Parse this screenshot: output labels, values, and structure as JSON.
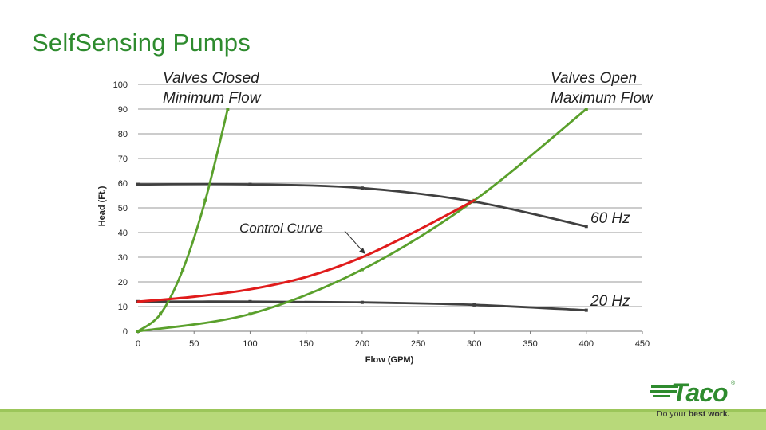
{
  "slide": {
    "title": "SelfSensing Pumps"
  },
  "annotations": {
    "valves_closed_line1": "Valves Closed",
    "valves_closed_line2": "Minimum Flow",
    "valves_open_line1": "Valves Open",
    "valves_open_line2": "Maximum Flow",
    "control_curve": "Control Curve",
    "hz60": "60 Hz",
    "hz20": "20 Hz"
  },
  "logo": {
    "word": "Taco",
    "registered": "®",
    "tagline_plain": "Do your ",
    "tagline_bold": "best work."
  },
  "colors": {
    "title": "#2e8b2e",
    "system_curve": "#5aa02c",
    "pump_curve": "#404040",
    "control_curve": "#e01b1b",
    "band": "#b8d97a"
  },
  "chart_data": {
    "type": "line",
    "xlabel": "Flow (GPM)",
    "ylabel": "Head (Ft.)",
    "xlim": [
      0,
      450
    ],
    "ylim": [
      0,
      100
    ],
    "xticks": [
      0,
      50,
      100,
      150,
      200,
      250,
      300,
      350,
      400,
      450
    ],
    "yticks": [
      0,
      10,
      20,
      30,
      40,
      50,
      60,
      70,
      80,
      90,
      100
    ],
    "grid": "horizontal",
    "series": [
      {
        "key": "min_flow",
        "color": "#5aa02c",
        "x": [
          0,
          20,
          40,
          60,
          80
        ],
        "y": [
          0,
          7,
          25,
          53,
          90
        ]
      },
      {
        "key": "max_flow",
        "color": "#5aa02c",
        "x": [
          0,
          100,
          200,
          300,
          400
        ],
        "y": [
          0,
          7,
          25,
          53,
          90
        ]
      },
      {
        "key": "pump_60hz",
        "color": "#404040",
        "x": [
          0,
          100,
          200,
          300,
          400
        ],
        "y": [
          59.5,
          59.5,
          58,
          52.5,
          42.5
        ]
      },
      {
        "key": "pump_20hz",
        "color": "#404040",
        "x": [
          0,
          100,
          200,
          300,
          400
        ],
        "y": [
          12,
          12,
          11.7,
          10.7,
          8.5
        ]
      },
      {
        "key": "control",
        "color": "#e01b1b",
        "x": [
          0,
          50,
          100,
          150,
          200,
          250,
          300
        ],
        "y": [
          12,
          14,
          17,
          22,
          30,
          41,
          53
        ]
      }
    ]
  }
}
